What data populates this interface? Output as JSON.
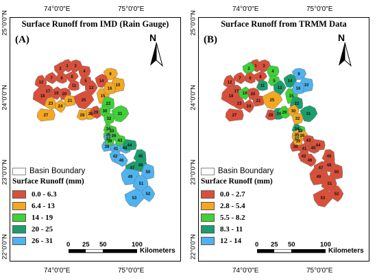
{
  "coords": {
    "lon_left": "74°0'0\"E",
    "lon_right": "75°0'0\"E",
    "lat_25": "25°0'0\"N",
    "lat_24": "24°0'0\"N",
    "lat_23": "23°0'0\"N",
    "lat_22": "22°0'0\"N"
  },
  "panels": [
    {
      "title": "Surface Runoff from IMD (Rain Gauge)",
      "label": "(A)",
      "north": "N",
      "legend": {
        "boundary_label": "Basin Boundary",
        "title": "Surface Runoff (mm)",
        "classes": [
          {
            "label": "0.0 - 6.3",
            "color": "#d9503a"
          },
          {
            "label": "6.4 - 13",
            "color": "#f4a821"
          },
          {
            "label": "14 - 19",
            "color": "#3fd137"
          },
          {
            "label": "20 - 25",
            "color": "#1a9e6e"
          },
          {
            "label": "26 - 31",
            "color": "#4fb3ef"
          }
        ]
      },
      "basin_class": {
        "1": 0,
        "2": 0,
        "3": 0,
        "4": 0,
        "5": 0,
        "6": 0,
        "7": 0,
        "8": 0,
        "9": 1,
        "10": 1,
        "11": 0,
        "12": 0,
        "13": 0,
        "14": 0,
        "15": 1,
        "16": 1,
        "17": 0,
        "18": 0,
        "19": 0,
        "20": 0,
        "21": 1,
        "22": 2,
        "23": 1,
        "24": 1,
        "25": 0,
        "26": 1,
        "27": 1,
        "28": 1,
        "29": 0,
        "30": 2,
        "31": 2,
        "32": 2,
        "33": 2,
        "34": 2,
        "35": 2,
        "36": 2,
        "37": 4,
        "38": 4,
        "39": 2,
        "40": 4,
        "41": 4,
        "42": 4,
        "43": 2,
        "44": 3,
        "45": 3,
        "46": 4,
        "47": 3,
        "48": 3,
        "49": 4,
        "50": 4,
        "51": 4,
        "52": 4,
        "53": 4
      }
    },
    {
      "title": "Surface Runoff from TRMM Data",
      "label": "(B)",
      "north": "N",
      "legend": {
        "boundary_label": "Basin Boundary",
        "title": "Surface Runoff (mm)",
        "classes": [
          {
            "label": "0.0 - 2.7",
            "color": "#d9503a"
          },
          {
            "label": "2.8 - 5.4",
            "color": "#f4a821"
          },
          {
            "label": "5.5 - 8.2",
            "color": "#3fd137"
          },
          {
            "label": "8.3 - 11",
            "color": "#1a9e6e"
          },
          {
            "label": "12 - 14",
            "color": "#4fb3ef"
          }
        ]
      },
      "basin_class": {
        "1": 0,
        "2": 2,
        "3": 0,
        "4": 2,
        "5": 2,
        "6": 0,
        "7": 0,
        "8": 0,
        "9": 4,
        "10": 4,
        "11": 3,
        "12": 0,
        "13": 3,
        "14": 3,
        "15": 2,
        "16": 4,
        "17": 0,
        "18": 0,
        "19": 2,
        "20": 0,
        "21": 0,
        "22": 3,
        "23": 0,
        "24": 0,
        "25": 1,
        "26": 3,
        "27": 0,
        "28": 0,
        "29": 2,
        "30": 1,
        "31": 3,
        "32": 1,
        "33": 2,
        "34": 3,
        "35": 1,
        "36": 1,
        "37": 1,
        "38": 0,
        "39": 1,
        "40": 0,
        "41": 0,
        "42": 0,
        "43": 0,
        "44": 0,
        "45": 0,
        "46": 0,
        "47": 0,
        "48": 0,
        "49": 0,
        "50": 0,
        "51": 0,
        "52": 0,
        "53": 0
      }
    }
  ],
  "scale": {
    "ticks": [
      "0",
      "25",
      "50",
      "100"
    ],
    "unit": "Kilometers"
  }
}
